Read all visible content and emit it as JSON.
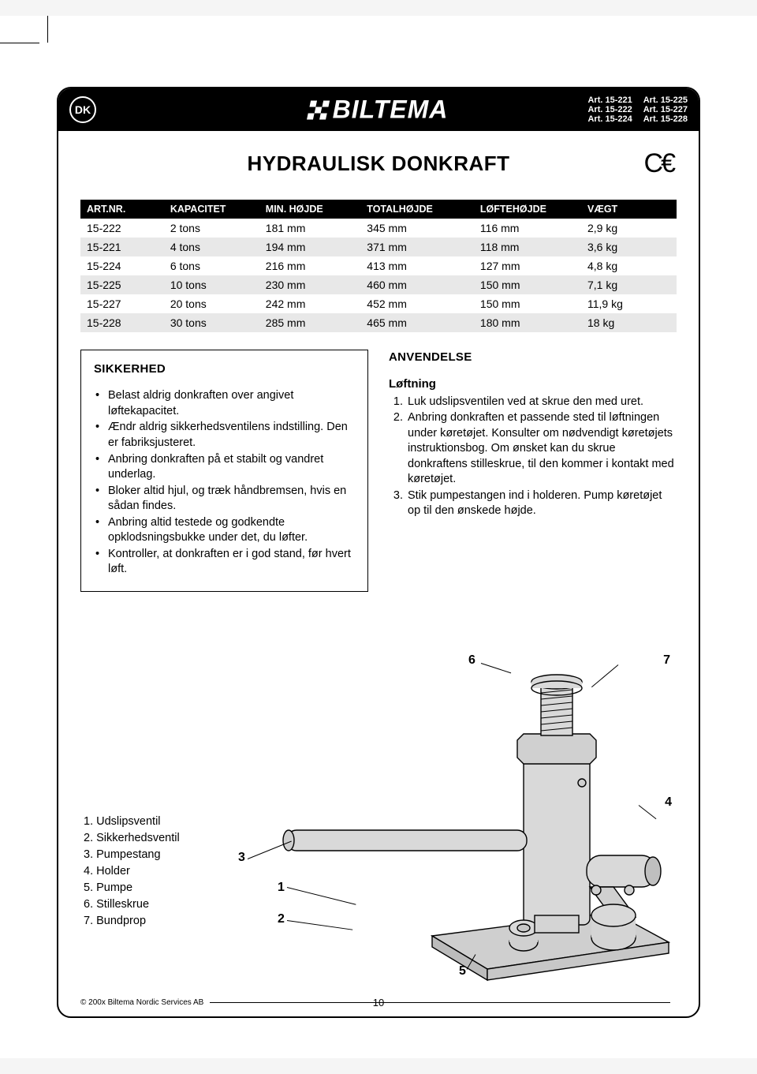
{
  "header": {
    "country_code": "DK",
    "brand": "BILTEMA",
    "articles": [
      "Art. 15-221",
      "Art. 15-225",
      "Art. 15-222",
      "Art. 15-227",
      "Art. 15-224",
      "Art. 15-228"
    ]
  },
  "title": "HYDRAULISK DONKRAFT",
  "ce_mark": "CE",
  "table": {
    "columns": [
      "ART.NR.",
      "KAPACITET",
      "MIN. HØJDE",
      "TOTALHØJDE",
      "LØFTEHØJDE",
      "VÆGT"
    ],
    "rows": [
      [
        "15-222",
        "2 tons",
        "181 mm",
        "345 mm",
        "116 mm",
        "2,9 kg"
      ],
      [
        "15-221",
        "4 tons",
        "194 mm",
        "371 mm",
        "118 mm",
        "3,6 kg"
      ],
      [
        "15-224",
        "6 tons",
        "216 mm",
        "413 mm",
        "127 mm",
        "4,8 kg"
      ],
      [
        "15-225",
        "10 tons",
        "230 mm",
        "460 mm",
        "150 mm",
        "7,1 kg"
      ],
      [
        "15-227",
        "20 tons",
        "242 mm",
        "452 mm",
        "150 mm",
        "11,9 kg"
      ],
      [
        "15-228",
        "30 tons",
        "285 mm",
        "465 mm",
        "180 mm",
        "18 kg"
      ]
    ],
    "col_widths": [
      "14%",
      "16%",
      "17%",
      "19%",
      "18%",
      "16%"
    ],
    "header_bg": "#000000",
    "header_fg": "#ffffff",
    "row_alt_bg": "#e8e8e8"
  },
  "safety": {
    "heading": "SIKKERHED",
    "items": [
      "Belast aldrig donkraften over angivet løftekapacitet.",
      "Ændr aldrig sikkerhedsventilens indstilling. Den er fabriksjusteret.",
      "Anbring donkraften på et stabilt og vandret underlag.",
      "Bloker altid hjul, og træk håndbremsen, hvis en sådan findes.",
      "Anbring altid testede og godkendte opklodsningsbukke under det, du løfter.",
      "Kontroller, at donkraften er i god stand, før hvert løft."
    ]
  },
  "usage": {
    "heading": "ANVENDELSE",
    "sub": "Løftning",
    "steps": [
      "Luk udslipsventilen ved at skrue den med uret.",
      "Anbring donkraften et passende sted til løftningen under køretøjet. Konsulter om nødvendigt køretøjets instruktionsbog. Om ønsket kan du skrue donkraftens stilleskrue, til den kommer i kontakt med køretøjet.",
      "Stik pumpestangen ind i holderen. Pump køretøjet op til den ønskede højde."
    ]
  },
  "parts": {
    "items": [
      "Udslipsventil",
      "Sikkerhedsventil",
      "Pumpestang",
      "Holder",
      "Pumpe",
      "Stilleskrue",
      "Bundprop"
    ]
  },
  "diagram": {
    "callouts": {
      "1": "1",
      "2": "2",
      "3": "3",
      "4": "4",
      "5": "5",
      "6": "6",
      "7": "7"
    },
    "colors": {
      "fill": "#d9d9d9",
      "stroke": "#000000",
      "shadow": "#bfbfbf"
    }
  },
  "footer": {
    "copyright": "© 200x Biltema Nordic Services AB",
    "page": "10"
  }
}
